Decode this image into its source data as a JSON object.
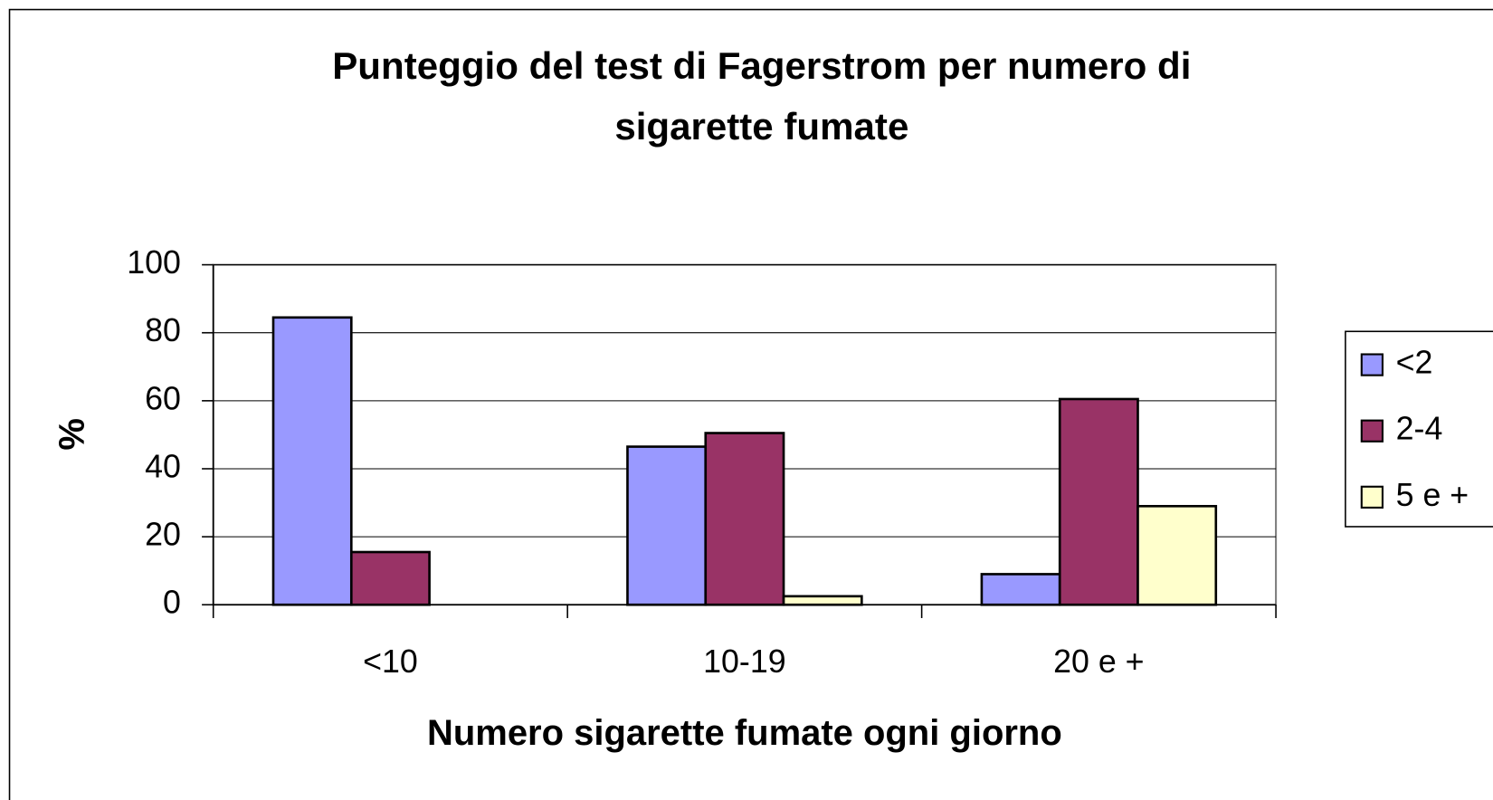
{
  "chart_data": {
    "type": "bar",
    "title": "Punteggio del test di Fagerstrom per numero di sigarette fumate",
    "xlabel": "Numero sigarette fumate ogni giorno",
    "ylabel": "%",
    "categories": [
      "<10",
      "10-19",
      "20 e +"
    ],
    "series": [
      {
        "name": "<2",
        "color": "#9999ff",
        "values": [
          84.5,
          46.5,
          9
        ]
      },
      {
        "name": "2-4",
        "color": "#993366",
        "values": [
          15.5,
          50.5,
          60.5
        ]
      },
      {
        "name": "5 e +",
        "color": "#ffffcc",
        "values": [
          0,
          2.5,
          29
        ]
      }
    ],
    "ylim": [
      0,
      100
    ],
    "yticks": [
      0,
      20,
      40,
      60,
      80,
      100
    ],
    "grid": true,
    "legend": "right"
  }
}
